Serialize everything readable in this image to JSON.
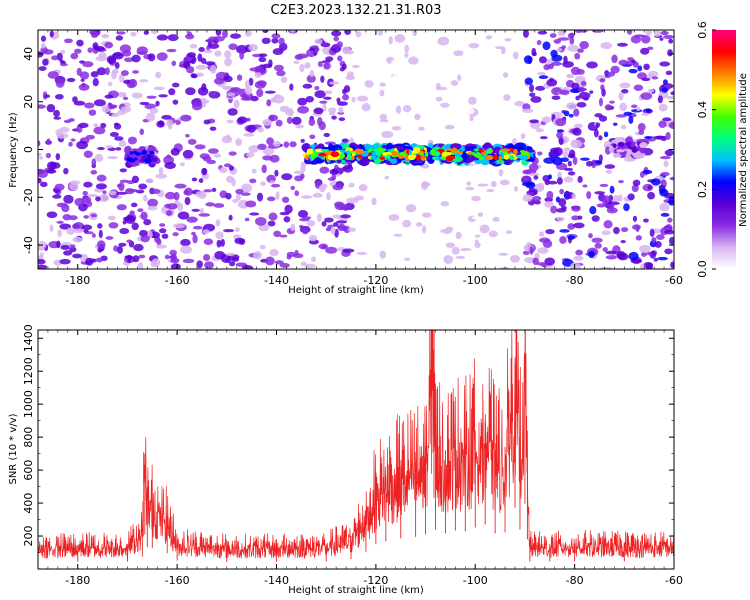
{
  "title": "C2E3.2023.132.21.31.R03",
  "chart_data": [
    {
      "type": "heatmap",
      "xlabel": "Height of straight line (km)",
      "ylabel": "Frequency (Hz)",
      "xlim": [
        -188,
        -60
      ],
      "ylim": [
        -50,
        50
      ],
      "xticks": [
        -180,
        -160,
        -140,
        -120,
        -100,
        -80,
        -60
      ],
      "yticks": [
        -40,
        -20,
        0,
        20,
        40
      ],
      "colorbar": {
        "label": "Normalized spectral amplitude",
        "range": [
          0.0,
          0.6
        ],
        "ticks": [
          "0.0",
          "0.2",
          "0.4",
          "0.6"
        ],
        "colors": [
          "#ffffff",
          "#d8b4f0",
          "#8a2be2",
          "#5a00d8",
          "#0000ff",
          "#00c0ff",
          "#00ff80",
          "#40ff00",
          "#ffff00",
          "#ff8000",
          "#ff0000",
          "#ff0080"
        ]
      },
      "signal_bands": [
        {
          "x_from": -170,
          "x_to": -164,
          "freq": -3,
          "peak": 0.25
        },
        {
          "x_from": -134,
          "x_to": -89,
          "freq": -2,
          "peak": 0.55
        },
        {
          "x_from": -72,
          "x_to": -66,
          "freq": 1,
          "peak": 0.18
        }
      ],
      "noise_regions": [
        {
          "x_from": -188,
          "x_to": -169,
          "level": 0.12
        },
        {
          "x_from": -169,
          "x_to": -125,
          "level": 0.11
        },
        {
          "x_from": -125,
          "x_to": -90,
          "level": 0.04
        },
        {
          "x_from": -90,
          "x_to": -60,
          "level": 0.13
        }
      ]
    },
    {
      "type": "line",
      "xlabel": "Height of straight line (km)",
      "ylabel": "SNR (10 * v/v)",
      "xlim": [
        -188,
        -60
      ],
      "ylim": [
        0,
        1450
      ],
      "xticks": [
        -180,
        -160,
        -140,
        -120,
        -100,
        -80,
        -60
      ],
      "yticks": [
        200,
        400,
        600,
        800,
        1000,
        1200,
        1400
      ],
      "color": "#ee2222",
      "series": [
        {
          "x": [
            -188,
            -180,
            -170,
            -167,
            -166.5,
            -166,
            -165,
            -162,
            -160,
            -150,
            -140,
            -130,
            -125,
            -122,
            -120,
            -118,
            -115,
            -112,
            -110,
            -108.3,
            -108,
            -106,
            -104,
            -102,
            -100,
            -98,
            -96,
            -94,
            -92,
            -91,
            -90,
            -89.5,
            -89,
            -85,
            -80,
            -70,
            -60
          ],
          "y": [
            140,
            145,
            150,
            250,
            700,
            440,
            420,
            320,
            170,
            140,
            140,
            150,
            200,
            350,
            500,
            560,
            620,
            650,
            700,
            1440,
            800,
            720,
            780,
            760,
            840,
            900,
            720,
            740,
            1240,
            800,
            1320,
            600,
            150,
            150,
            155,
            150,
            150
          ]
        }
      ]
    }
  ]
}
